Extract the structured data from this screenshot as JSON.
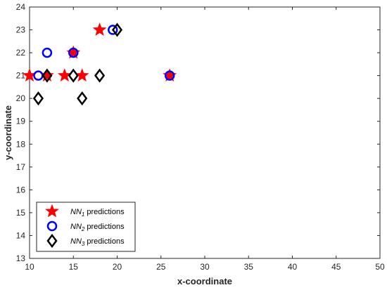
{
  "chart_data": {
    "type": "scatter",
    "title": "",
    "xlabel": "x-coordinate",
    "ylabel": "y-coordinate",
    "xlim": [
      10,
      50
    ],
    "ylim": [
      13,
      24
    ],
    "x_ticks": [
      10,
      15,
      20,
      25,
      30,
      35,
      40,
      45,
      50
    ],
    "y_ticks": [
      13,
      14,
      15,
      16,
      17,
      18,
      19,
      20,
      21,
      22,
      23,
      24
    ],
    "grid": false,
    "legend_position": "bottom-left",
    "series": [
      {
        "name": "NN",
        "subscript": "1",
        "label_suffix": " predictions",
        "marker": "star",
        "color": "#ff0000",
        "points": [
          {
            "x": 10,
            "y": 21
          },
          {
            "x": 12,
            "y": 21
          },
          {
            "x": 14,
            "y": 21
          },
          {
            "x": 15,
            "y": 22
          },
          {
            "x": 16,
            "y": 21
          },
          {
            "x": 18,
            "y": 23
          },
          {
            "x": 26,
            "y": 21
          }
        ]
      },
      {
        "name": "NN",
        "subscript": "2",
        "label_suffix": " predictions",
        "marker": "circle",
        "color": "#0000ff",
        "points": [
          {
            "x": 11,
            "y": 21
          },
          {
            "x": 12,
            "y": 22
          },
          {
            "x": 15,
            "y": 22
          },
          {
            "x": 19.5,
            "y": 23
          },
          {
            "x": 26,
            "y": 21
          }
        ]
      },
      {
        "name": "NN",
        "subscript": "3",
        "label_suffix": " predictions",
        "marker": "diamond",
        "color": "#000000",
        "points": [
          {
            "x": 11,
            "y": 20
          },
          {
            "x": 12,
            "y": 21
          },
          {
            "x": 15,
            "y": 21
          },
          {
            "x": 16,
            "y": 20
          },
          {
            "x": 18,
            "y": 21
          },
          {
            "x": 20,
            "y": 23
          }
        ]
      }
    ]
  }
}
